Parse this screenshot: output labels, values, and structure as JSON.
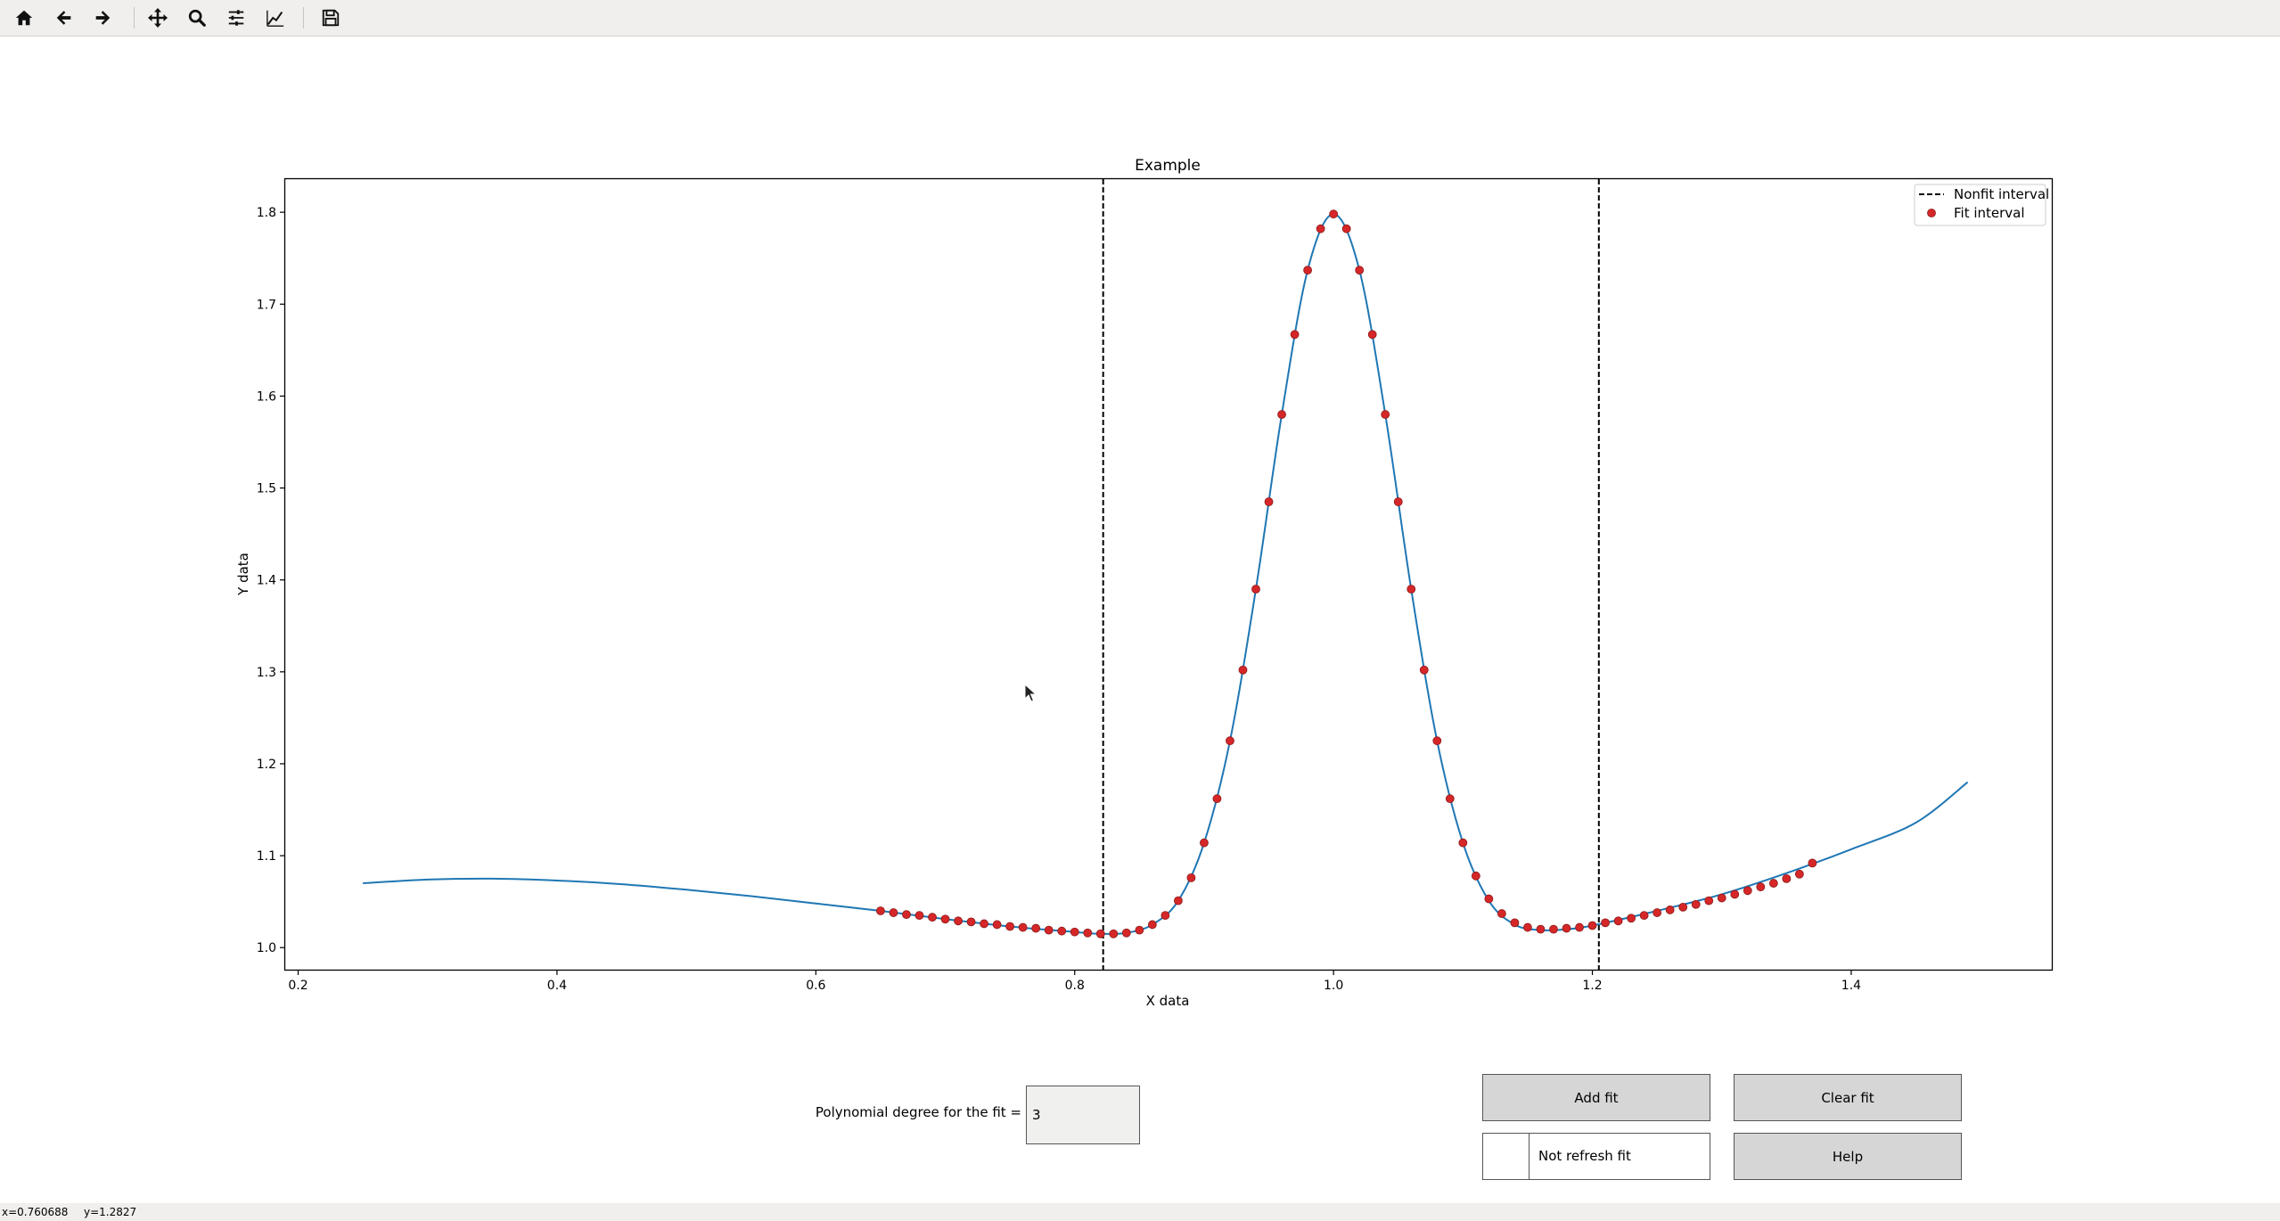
{
  "toolbar": {
    "buttons": [
      {
        "name": "home-icon",
        "label": "Home"
      },
      {
        "name": "back-icon",
        "label": "Back"
      },
      {
        "name": "forward-icon",
        "label": "Forward"
      },
      {
        "name": "pan-icon",
        "label": "Pan"
      },
      {
        "name": "zoom-icon",
        "label": "Zoom"
      },
      {
        "name": "subplots-icon",
        "label": "Subplots"
      },
      {
        "name": "customize-icon",
        "label": "Customize"
      },
      {
        "name": "save-icon",
        "label": "Save"
      }
    ]
  },
  "chart_data": {
    "type": "line",
    "title": "Example",
    "xlabel": "X data",
    "ylabel": "Y data",
    "xlim": [
      0.19,
      1.555
    ],
    "ylim": [
      0.976,
      1.836
    ],
    "xticks": [
      "0.2",
      "0.4",
      "0.6",
      "0.8",
      "1.0",
      "1.2",
      "1.4"
    ],
    "yticks": [
      "1.0",
      "1.1",
      "1.2",
      "1.3",
      "1.4",
      "1.5",
      "1.6",
      "1.7",
      "1.8"
    ],
    "xtick_values": [
      0.2,
      0.4,
      0.6,
      0.8,
      1.0,
      1.2,
      1.4
    ],
    "ytick_values": [
      1.0,
      1.1,
      1.2,
      1.3,
      1.4,
      1.5,
      1.6,
      1.7,
      1.8
    ],
    "curve": {
      "color": "#1f77b4",
      "x": [
        0.25,
        0.3,
        0.35,
        0.4,
        0.45,
        0.5,
        0.55,
        0.6,
        0.65,
        0.7,
        0.75,
        0.8,
        0.82,
        0.84,
        0.86,
        0.88,
        0.9,
        0.92,
        0.94,
        0.96,
        0.98,
        1.0,
        1.02,
        1.04,
        1.06,
        1.08,
        1.1,
        1.12,
        1.14,
        1.16,
        1.18,
        1.2,
        1.25,
        1.3,
        1.35,
        1.4,
        1.45,
        1.49
      ],
      "y": [
        1.07,
        1.074,
        1.075,
        1.073,
        1.069,
        1.063,
        1.056,
        1.048,
        1.04,
        1.031,
        1.023,
        1.017,
        1.015,
        1.016,
        1.025,
        1.051,
        1.114,
        1.225,
        1.39,
        1.58,
        1.737,
        1.798,
        1.737,
        1.58,
        1.39,
        1.225,
        1.114,
        1.051,
        1.025,
        1.019,
        1.02,
        1.024,
        1.04,
        1.058,
        1.081,
        1.107,
        1.136,
        1.18
      ]
    },
    "nonfit_interval": {
      "x": [
        0.822,
        1.205
      ],
      "color": "#000000",
      "style": "dashed"
    },
    "fit_points": {
      "color": "#d62728",
      "x": [
        0.65,
        0.66,
        0.67,
        0.68,
        0.69,
        0.7,
        0.71,
        0.72,
        0.73,
        0.74,
        0.75,
        0.76,
        0.77,
        0.78,
        0.79,
        0.8,
        0.81,
        0.82,
        0.83,
        0.84,
        0.85,
        0.86,
        0.87,
        0.88,
        0.89,
        0.9,
        0.91,
        0.92,
        0.93,
        0.94,
        0.95,
        0.96,
        0.97,
        0.98,
        0.99,
        1.0,
        1.01,
        1.02,
        1.03,
        1.04,
        1.05,
        1.06,
        1.07,
        1.08,
        1.09,
        1.1,
        1.11,
        1.12,
        1.13,
        1.14,
        1.15,
        1.16,
        1.17,
        1.18,
        1.19,
        1.2,
        1.21,
        1.22,
        1.23,
        1.24,
        1.25,
        1.26,
        1.27,
        1.28,
        1.29,
        1.3,
        1.31,
        1.32,
        1.33,
        1.34,
        1.35,
        1.36,
        1.37
      ],
      "y": [
        1.04,
        1.038,
        1.036,
        1.035,
        1.033,
        1.031,
        1.029,
        1.028,
        1.026,
        1.025,
        1.023,
        1.022,
        1.021,
        1.019,
        1.018,
        1.017,
        1.016,
        1.015,
        1.015,
        1.016,
        1.019,
        1.025,
        1.035,
        1.051,
        1.076,
        1.114,
        1.162,
        1.225,
        1.302,
        1.39,
        1.485,
        1.58,
        1.667,
        1.737,
        1.782,
        1.798,
        1.782,
        1.737,
        1.667,
        1.58,
        1.485,
        1.39,
        1.302,
        1.225,
        1.162,
        1.114,
        1.078,
        1.053,
        1.037,
        1.027,
        1.022,
        1.02,
        1.02,
        1.021,
        1.022,
        1.024,
        1.027,
        1.029,
        1.032,
        1.035,
        1.038,
        1.041,
        1.044,
        1.047,
        1.051,
        1.054,
        1.058,
        1.062,
        1.066,
        1.07,
        1.075,
        1.08,
        1.092
      ]
    },
    "legend": {
      "position": "top-right",
      "entries": [
        "Nonfit interval",
        "Fit interval"
      ]
    }
  },
  "controls": {
    "poly_label": "Polynomial degree for the fit =",
    "poly_value": "3",
    "add_fit": "Add fit",
    "clear_fit": "Clear fit",
    "not_refresh": "Not refresh fit",
    "help": "Help"
  },
  "status": {
    "x": "x=0.760688",
    "y": "y=1.2827"
  }
}
